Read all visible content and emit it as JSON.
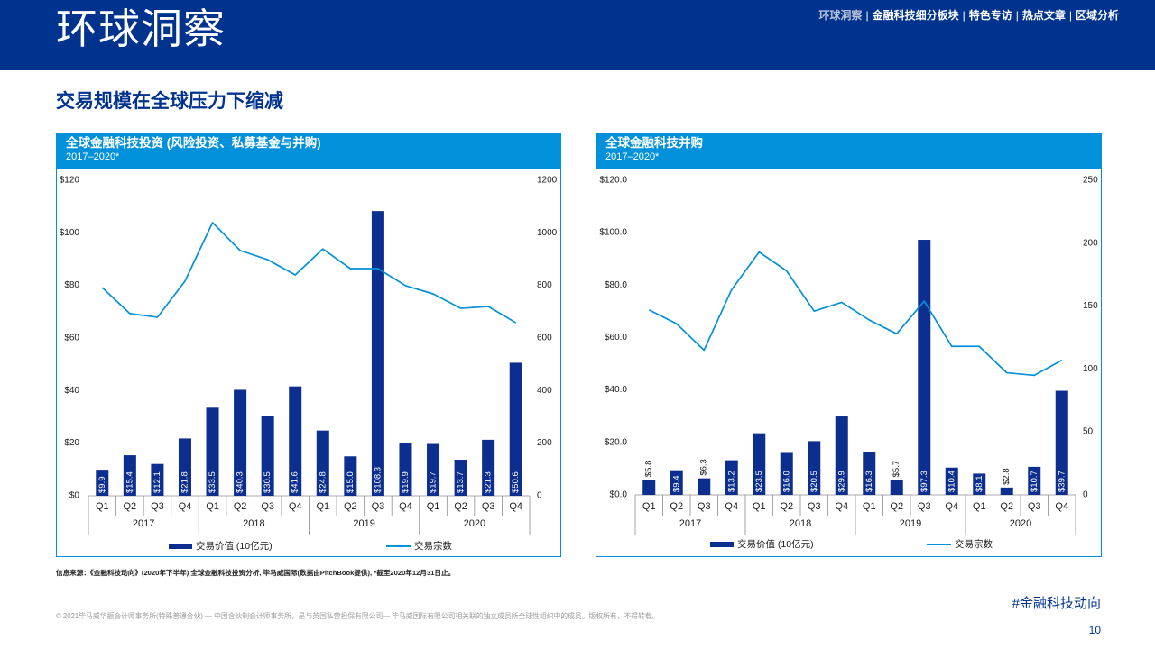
{
  "header": {
    "title": "环球洞察",
    "nav": [
      {
        "label": "环球洞察",
        "active": true
      },
      {
        "label": "金融科技细分板块",
        "active": false
      },
      {
        "label": "特色专访",
        "active": false
      },
      {
        "label": "热点文章",
        "active": false
      },
      {
        "label": "区域分析",
        "active": false
      }
    ],
    "separator": "|"
  },
  "section_title": "交易规模在全球压力下缩减",
  "colors": {
    "brand_dark_blue": "#00338D",
    "panel_blue": "#0091DA",
    "bar_blue": "#0B2E8F",
    "line_blue": "#0091DA",
    "nav_active": "#B7C1D9"
  },
  "chart_data": [
    {
      "type": "bar",
      "title": "全球金融科技投资 (风险投资、私募基金与并购)",
      "subtitle": "2017–2020*",
      "categories": [
        "Q1",
        "Q2",
        "Q3",
        "Q4",
        "Q1",
        "Q2",
        "Q3",
        "Q4",
        "Q1",
        "Q2",
        "Q3",
        "Q4",
        "Q1",
        "Q2",
        "Q3",
        "Q4"
      ],
      "groups": [
        {
          "label": "2017",
          "count": 4
        },
        {
          "label": "2018",
          "count": 4
        },
        {
          "label": "2019",
          "count": 4
        },
        {
          "label": "2020",
          "count": 4
        }
      ],
      "ylim": [
        0,
        120
      ],
      "y_ticks": [
        "$0",
        "$20",
        "$40",
        "$60",
        "$80",
        "$100",
        "$120"
      ],
      "y2lim": [
        0,
        1200
      ],
      "y2_ticks": [
        "0",
        "200",
        "400",
        "600",
        "800",
        "1000",
        "1200"
      ],
      "grid": false,
      "legend": "bottom",
      "series": [
        {
          "name": "交易价值 (10亿元)",
          "type": "bar",
          "axis": "left",
          "values": [
            9.9,
            15.4,
            12.1,
            21.8,
            33.5,
            40.3,
            30.5,
            41.6,
            24.8,
            15.0,
            108.3,
            19.9,
            19.7,
            13.7,
            21.3,
            50.6
          ],
          "labels": [
            "$9.9",
            "$15.4",
            "$12.1",
            "$21.8",
            "$33.5",
            "$40.3",
            "$30.5",
            "$41.6",
            "$24.8",
            "$15.0",
            "$108.3",
            "$19.9",
            "$19.7",
            "$13.7",
            "$21.3",
            "$50.6"
          ]
        },
        {
          "name": "交易宗数",
          "type": "line",
          "axis": "right",
          "values": [
            792,
            693,
            679,
            816,
            1039,
            933,
            898,
            840,
            939,
            864,
            864,
            799,
            768,
            713,
            720,
            658
          ]
        }
      ]
    },
    {
      "type": "bar",
      "title": "全球金融科技并购",
      "subtitle": "2017–2020*",
      "categories": [
        "Q1",
        "Q2",
        "Q3",
        "Q4",
        "Q1",
        "Q2",
        "Q3",
        "Q4",
        "Q1",
        "Q2",
        "Q3",
        "Q4",
        "Q1",
        "Q2",
        "Q3",
        "Q4"
      ],
      "groups": [
        {
          "label": "2017",
          "count": 4
        },
        {
          "label": "2018",
          "count": 4
        },
        {
          "label": "2019",
          "count": 4
        },
        {
          "label": "2020",
          "count": 4
        }
      ],
      "ylim": [
        0,
        120
      ],
      "y_ticks": [
        "$0.0",
        "$20.0",
        "$40.0",
        "$60.0",
        "$80.0",
        "$100.0",
        "$120.0"
      ],
      "y2lim": [
        0,
        250
      ],
      "y2_ticks": [
        "0",
        "50",
        "100",
        "150",
        "200",
        "250"
      ],
      "grid": false,
      "legend": "bottom",
      "series": [
        {
          "name": "交易价值 (10亿元)",
          "type": "bar",
          "axis": "left",
          "values": [
            5.8,
            9.4,
            6.3,
            13.2,
            23.5,
            16.0,
            20.5,
            29.9,
            16.3,
            5.7,
            97.3,
            10.4,
            8.1,
            2.8,
            10.7,
            39.7
          ],
          "labels": [
            "$5.8",
            "$9.4",
            "$6.3",
            "$13.2",
            "$23.5",
            "$16.0",
            "$20.5",
            "$29.9",
            "$16.3",
            "$5.7",
            "$97.3",
            "$10.4",
            "$8.1",
            "$2.8",
            "$10.7",
            "$39.7"
          ]
        },
        {
          "name": "交易宗数",
          "type": "line",
          "axis": "right",
          "values": [
            147,
            136,
            115,
            163,
            193,
            178,
            146,
            153,
            139,
            128,
            154,
            118,
            118,
            97,
            95,
            107
          ]
        }
      ]
    }
  ],
  "source_note": "信息来源：《金融科技动向》(2020年下半年) 全球金融科技投资分析, 毕马威国际(数据由PitchBook提供), *截至2020年12月31日止。",
  "copyright": "© 2021毕马威华振会计师事务所(特殊普通合伙) — 中国合伙制会计师事务所，是与英国私营担保有限公司— 毕马威国际有限公司相关联的独立成员所全球性组织中的成员。版权所有，不得转载。",
  "hashtag": "#金融科技动向",
  "page_number": "10"
}
